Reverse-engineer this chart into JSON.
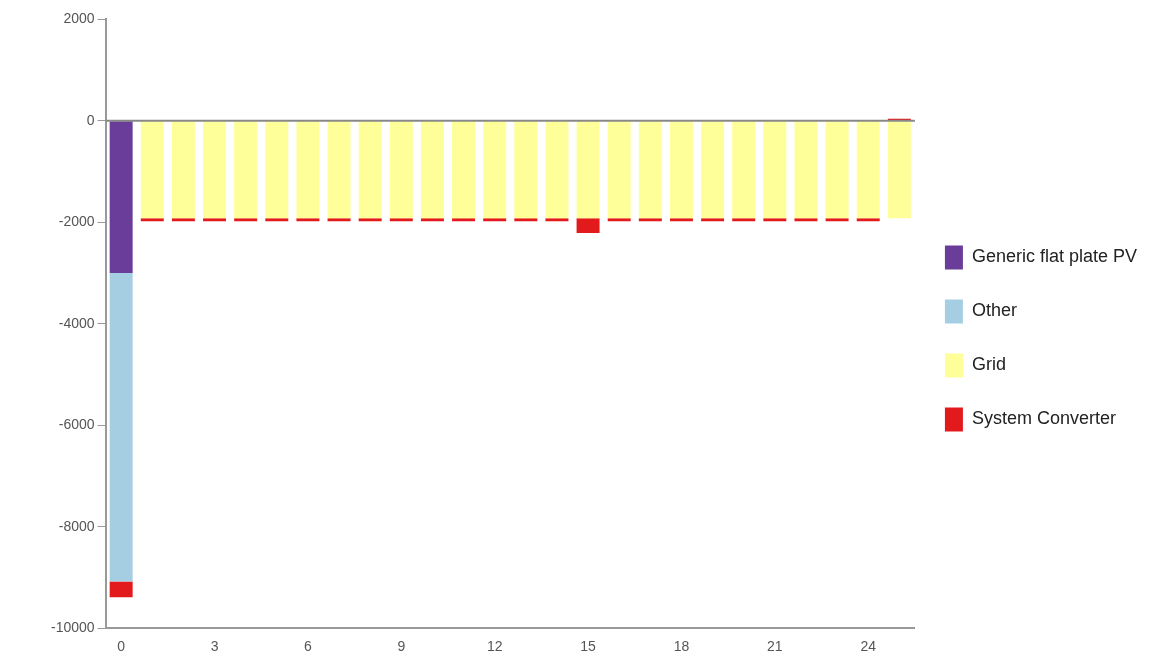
{
  "chart_data": {
    "type": "bar",
    "stacked": true,
    "categories": [
      "0",
      null,
      null,
      "3",
      null,
      null,
      "6",
      null,
      null,
      "9",
      null,
      null,
      "12",
      null,
      null,
      "15",
      null,
      null,
      "18",
      null,
      null,
      "21",
      null,
      null,
      "24",
      null
    ],
    "series": [
      {
        "name": "Generic flat plate PV",
        "color": "#6a3d9a",
        "values": [
          -3000,
          null,
          null,
          null,
          null,
          null,
          null,
          null,
          null,
          null,
          null,
          null,
          null,
          null,
          null,
          null,
          null,
          null,
          null,
          null,
          null,
          null,
          null,
          null,
          null,
          null
        ]
      },
      {
        "name": "Other",
        "color": "#a6cee3",
        "values": [
          -6080,
          null,
          null,
          null,
          null,
          null,
          null,
          null,
          null,
          null,
          null,
          null,
          null,
          null,
          null,
          null,
          null,
          null,
          null,
          null,
          null,
          null,
          null,
          null,
          null,
          null
        ]
      },
      {
        "name": "Grid",
        "color": "#ffff99",
        "values": [
          null,
          -1920,
          -1920,
          -1920,
          -1920,
          -1920,
          -1920,
          -1920,
          -1920,
          -1920,
          -1920,
          -1920,
          -1920,
          -1920,
          -1920,
          -1920,
          -1920,
          -1920,
          -1920,
          -1920,
          -1920,
          -1920,
          -1920,
          -1920,
          -1920,
          -1920
        ]
      },
      {
        "name": "System Converter",
        "color": "#e31a1c",
        "values": [
          -310,
          -60,
          -60,
          -60,
          -60,
          -60,
          -60,
          -60,
          -60,
          -60,
          -60,
          -60,
          -60,
          -60,
          -60,
          -290,
          -60,
          -60,
          -60,
          -60,
          -60,
          -60,
          -60,
          -60,
          -60,
          40
        ]
      }
    ],
    "ylim": [
      -10000,
      2000
    ],
    "yticks": [
      -10000,
      -8000,
      -6000,
      -4000,
      -2000,
      0,
      2000
    ],
    "grid": false,
    "legend": "right",
    "ref_lines": [
      {
        "axis": "y",
        "value": 0,
        "color": "#888888"
      }
    ]
  }
}
